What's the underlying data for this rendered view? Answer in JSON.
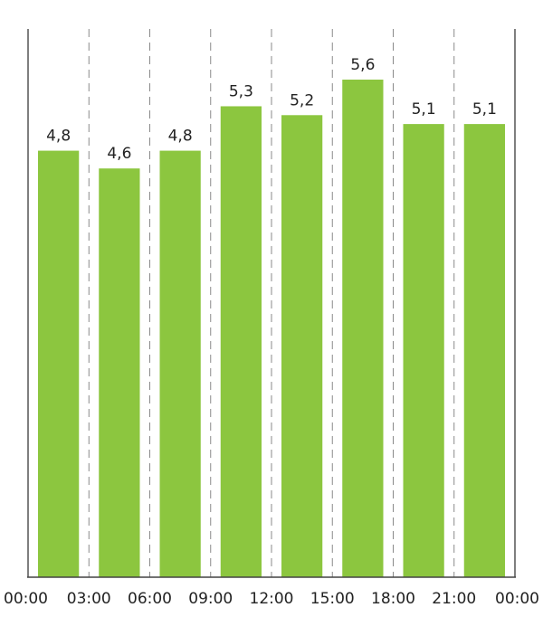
{
  "chart_data": {
    "type": "bar",
    "categories": [
      "00:00",
      "03:00",
      "06:00",
      "09:00",
      "12:00",
      "15:00",
      "18:00",
      "21:00"
    ],
    "x_tick_labels": [
      "00:00",
      "03:00",
      "06:00",
      "09:00",
      "12:00",
      "15:00",
      "18:00",
      "21:00",
      "00:00"
    ],
    "values": [
      4.8,
      4.6,
      4.8,
      5.3,
      5.2,
      5.6,
      5.1,
      5.1
    ],
    "value_labels": [
      "4,8",
      "4,6",
      "4,8",
      "5,3",
      "5,2",
      "5,6",
      "5,1",
      "5,1"
    ],
    "ylim": [
      0,
      5.6
    ],
    "grid": "vertical dashed",
    "legend": "none",
    "colors": {
      "bar": "#8cc63f"
    }
  }
}
